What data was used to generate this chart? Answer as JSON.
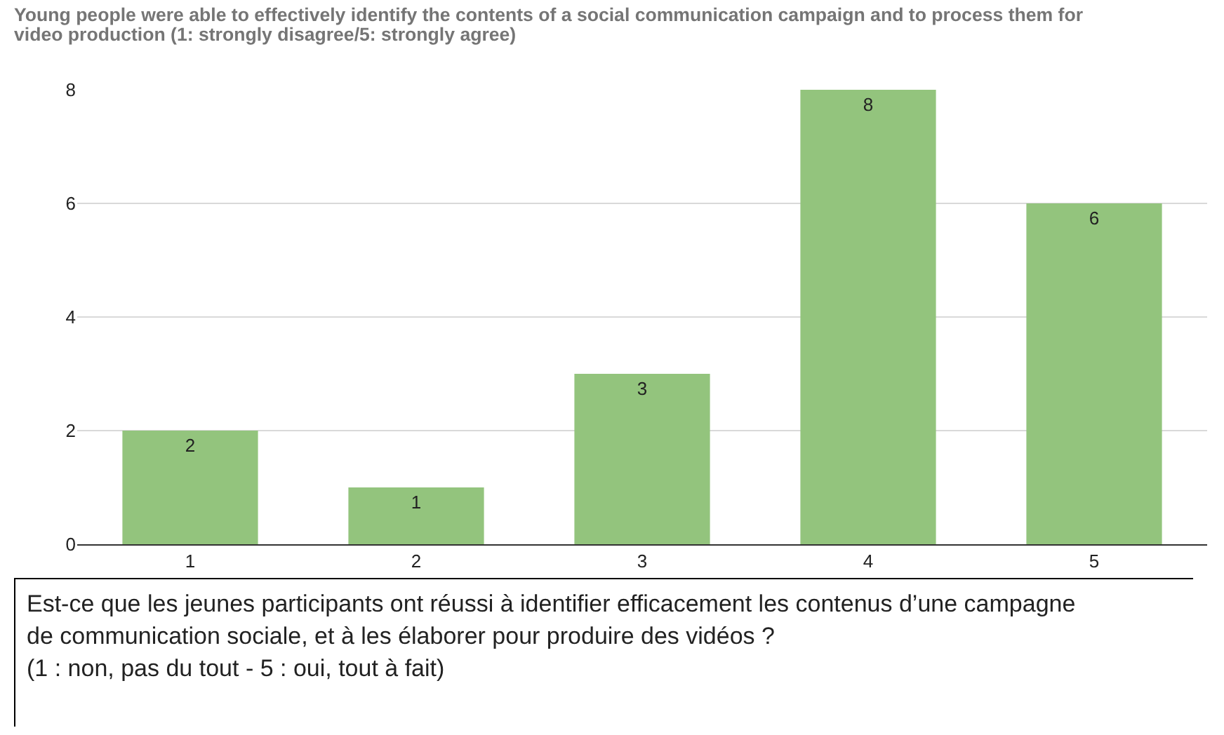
{
  "chart_data": {
    "type": "bar",
    "title": "Young people were able to effectively identify the contents of a social communication campaign and to process them for video production (1: strongly disagree/5: strongly agree)",
    "categories": [
      "1",
      "2",
      "3",
      "4",
      "5"
    ],
    "values": [
      2,
      1,
      3,
      8,
      6
    ],
    "color": "#93c47d",
    "ylim": [
      0,
      8
    ],
    "yticks": [
      0,
      2,
      4,
      6,
      8
    ],
    "grid": "y",
    "data_labels": true,
    "annotations": [
      "Est-ce que les jeunes participants ont réussi à identifier efficacement les contenus d’une campagne de communication sociale, et à les élaborer pour produire des vidéos ?\n(1 : non, pas du tout - 5 : oui, tout à fait)"
    ]
  }
}
